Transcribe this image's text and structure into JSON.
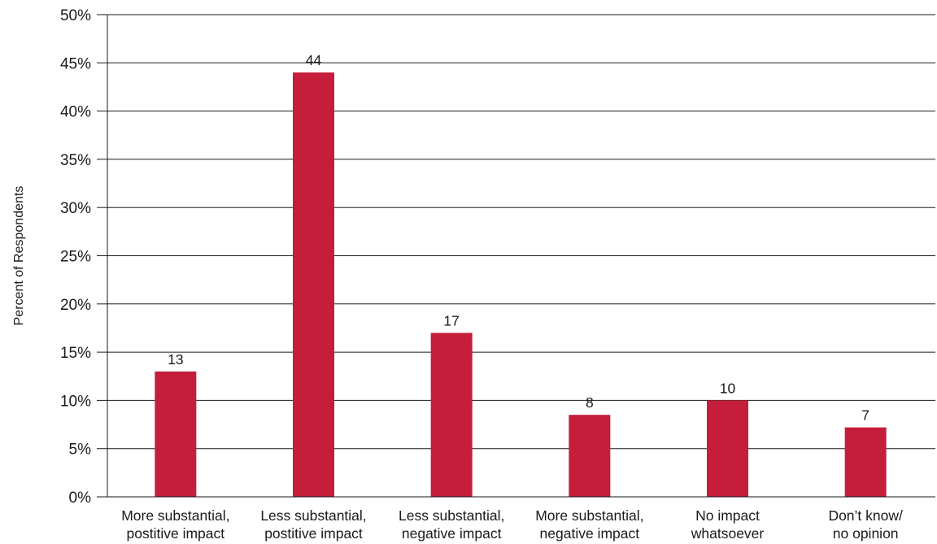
{
  "chart_data": {
    "type": "bar",
    "categories": [
      [
        "More substantial,",
        "postitive impact"
      ],
      [
        "Less substantial,",
        "postitive impact"
      ],
      [
        "Less substantial,",
        "negative impact"
      ],
      [
        "More substantial,",
        "negative impact"
      ],
      [
        "No impact",
        "whatsoever"
      ],
      [
        "Don’t know/",
        "no opinion"
      ]
    ],
    "values": [
      13,
      44,
      17,
      8.5,
      10,
      7.2
    ],
    "value_labels": [
      "13",
      "44",
      "17",
      "8",
      "10",
      "7"
    ],
    "title": "",
    "xlabel": "",
    "ylabel": "Percent of Respondents",
    "ylim": [
      0,
      50
    ],
    "yticks": [
      0,
      5,
      10,
      15,
      20,
      25,
      30,
      35,
      40,
      45,
      50
    ],
    "ytick_labels": [
      "0%",
      "5%",
      "10%",
      "15%",
      "20%",
      "25%",
      "30%",
      "35%",
      "40%",
      "45%",
      "50%"
    ],
    "grid": true,
    "legend": "none",
    "bar_color": "#c41e3a",
    "gridline_color": "#1a1a1a"
  }
}
